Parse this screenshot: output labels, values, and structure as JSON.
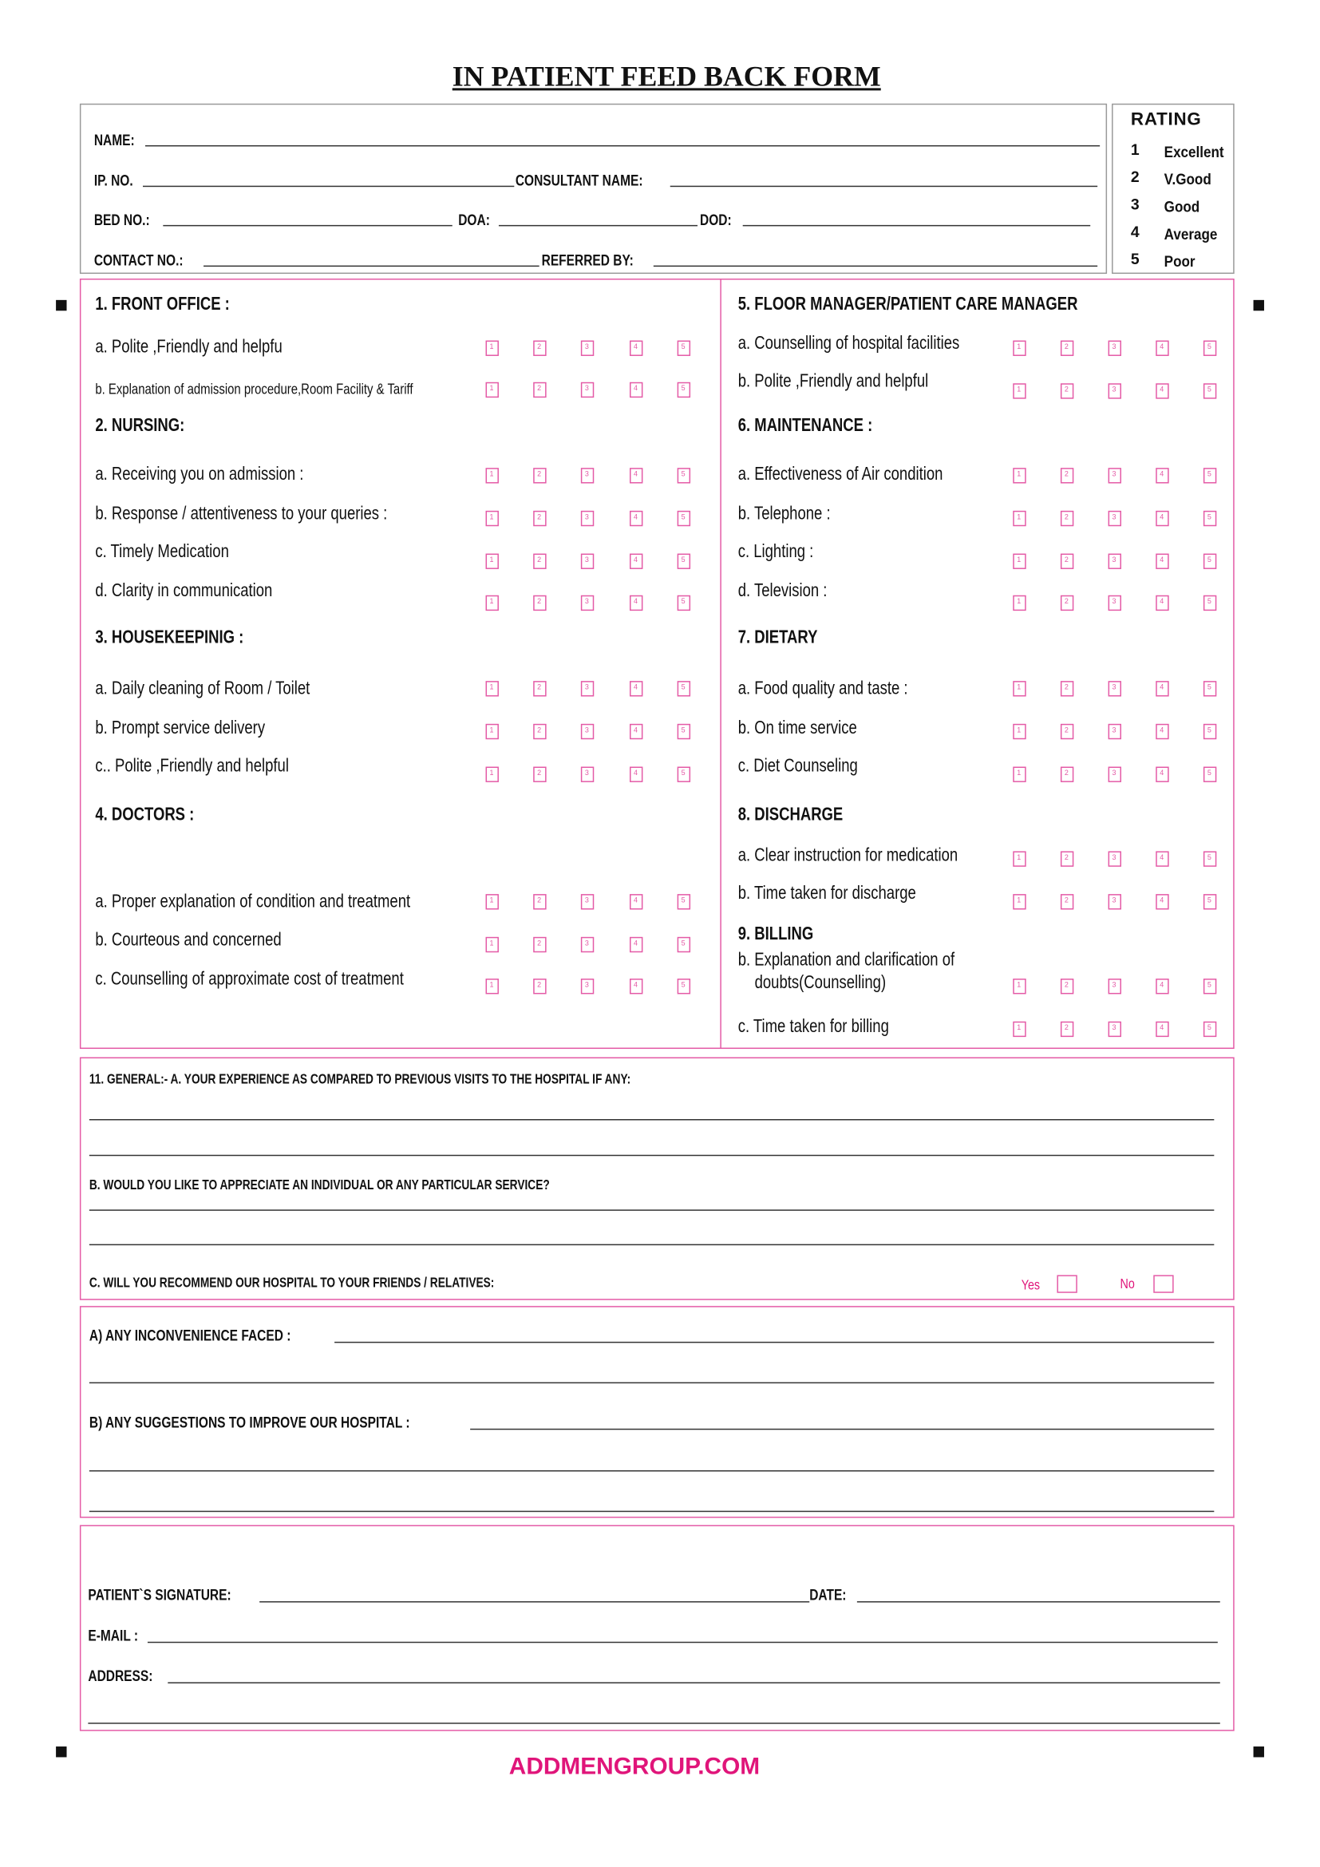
{
  "title": "IN PATIENT FEED BACK FORM",
  "patient_info": {
    "name_label": "NAME:",
    "ip_label": "IP. NO.",
    "consultant_label": "CONSULTANT  NAME:",
    "bed_label": "BED NO.:",
    "doa_label": "DOA:",
    "dod_label": "DOD:",
    "contact_label": "CONTACT NO.:",
    "referred_label": "REFERRED BY:"
  },
  "rating_legend": {
    "title": "RATING",
    "items": [
      {
        "num": "1",
        "label": "Excellent"
      },
      {
        "num": "2",
        "label": "V.Good"
      },
      {
        "num": "3",
        "label": "Good"
      },
      {
        "num": "4",
        "label": "Average"
      },
      {
        "num": "5",
        "label": "Poor"
      }
    ]
  },
  "rating_box_digits": [
    "1",
    "2",
    "3",
    "4",
    "5"
  ],
  "sections": [
    {
      "heading": "1. FRONT OFFICE :",
      "items": [
        {
          "label": "a. Polite ,Friendly  and helpfu"
        },
        {
          "label": "b. Explanation of  admission procedure,Room Facility & Tariff"
        }
      ]
    },
    {
      "heading": "2. NURSING:",
      "items": [
        {
          "label": "a. Receiving you on admission :"
        },
        {
          "label": "b. Response / attentiveness to your queries :"
        },
        {
          "label": "c. Timely Medication"
        },
        {
          "label": "d. Clarity in communication"
        }
      ]
    },
    {
      "heading": "3. HOUSEKEEPINIG :",
      "items": [
        {
          "label": "a. Daily cleaning of Room / Toilet"
        },
        {
          "label": "b. Prompt service delivery"
        },
        {
          "label": "c.. Polite ,Friendly  and helpful"
        }
      ]
    },
    {
      "heading": "4. DOCTORS :",
      "items": [
        {
          "label": "a. Proper explanation of condition and treatment"
        },
        {
          "label": "b. Courteous and concerned"
        },
        {
          "label": "c. Counselling of approximate cost of treatment"
        }
      ]
    },
    {
      "heading": "5. FLOOR MANAGER/PATIENT CARE MANAGER",
      "items": [
        {
          "label": "a. Counselling of hospital facilities"
        },
        {
          "label": "b. Polite ,Friendly  and helpful"
        }
      ]
    },
    {
      "heading": "6. MAINTENANCE :",
      "items": [
        {
          "label": "a. Effectiveness of Air condition"
        },
        {
          "label": "b. Telephone :"
        },
        {
          "label": "c. Lighting :"
        },
        {
          "label": "d. Television :"
        }
      ]
    },
    {
      "heading": "7. DIETARY",
      "items": [
        {
          "label": "a. Food quality and taste :"
        },
        {
          "label": "b. On time service"
        },
        {
          "label": "c. Diet  Counseling"
        }
      ]
    },
    {
      "heading": "8. DISCHARGE",
      "items": [
        {
          "label": "a. Clear instruction for medication"
        },
        {
          "label": "b. Time taken for discharge"
        }
      ]
    },
    {
      "heading": "9. BILLING",
      "items": [
        {
          "label": "b. Explanation and clarification of",
          "label_line2": "doubts(Counselling)"
        },
        {
          "label": "c. Time taken for billing"
        }
      ]
    }
  ],
  "general": {
    "question_a": "11. GENERAL:-  A. YOUR EXPERIENCE AS COMPARED TO PREVIOUS VISITS TO THE HOSPITAL IF ANY:",
    "question_b": "B. WOULD YOU LIKE TO APPRECIATE AN INDIVIDUAL OR ANY PARTICULAR SERVICE?",
    "question_c": "C. WILL YOU RECOMMEND OUR HOSPITAL TO YOUR FRIENDS / RELATIVES:",
    "yes_label": "Yes",
    "no_label": "No"
  },
  "feedback": {
    "inconvenience_label": "A) ANY INCONVENIENCE FACED  :",
    "suggestions_label": "B) ANY SUGGESTIONS TO IMPROVE OUR HOSPITAL :"
  },
  "signature": {
    "signature_label": "PATIENT`S SIGNATURE:",
    "date_label": "DATE:",
    "email_label": "E-MAIL  :",
    "address_label": "ADDRESS:"
  },
  "footer": "ADDMENGROUP.COM",
  "colors": {
    "accent": "#e0157a",
    "box_border": "#e45aa6"
  }
}
